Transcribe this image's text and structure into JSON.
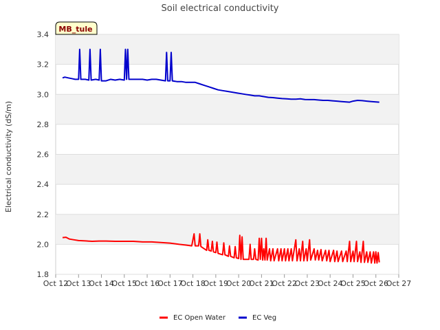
{
  "chart_data": {
    "type": "line",
    "title": "Soil electrical conductivity",
    "ylabel": "Electrical conductivity (dS/m)",
    "xlabel": "",
    "station_label": "MB_tule",
    "x_ticks": [
      12,
      13,
      14,
      15,
      16,
      17,
      18,
      19,
      20,
      21,
      22,
      23,
      24,
      25,
      26,
      27
    ],
    "x_tick_labels": [
      "Oct 12",
      "Oct 13",
      "Oct 14",
      "Oct 15",
      "Oct 16",
      "Oct 17",
      "Oct 18",
      "Oct 19",
      "Oct 20",
      "Oct 21",
      "Oct 22",
      "Oct 23",
      "Oct 24",
      "Oct 25",
      "Oct 26",
      "Oct 27"
    ],
    "xlim": [
      12,
      27
    ],
    "y_ticks": [
      1.8,
      2.0,
      2.2,
      2.4,
      2.6,
      2.8,
      3.0,
      3.2,
      3.4
    ],
    "y_tick_labels": [
      "1.8",
      "2.0",
      "2.2",
      "2.4",
      "2.6",
      "2.8",
      "3.0",
      "3.2",
      "3.4"
    ],
    "ylim": [
      1.8,
      3.4
    ],
    "grid": true,
    "background_bands": true,
    "legend_position": "bottom-center",
    "series": [
      {
        "name": "EC Open Water",
        "color": "#ff0000",
        "points": [
          [
            12.3,
            2.045
          ],
          [
            12.45,
            2.047
          ],
          [
            12.6,
            2.035
          ],
          [
            12.8,
            2.03
          ],
          [
            13.0,
            2.025
          ],
          [
            13.3,
            2.023
          ],
          [
            13.6,
            2.02
          ],
          [
            13.9,
            2.022
          ],
          [
            14.2,
            2.022
          ],
          [
            14.6,
            2.02
          ],
          [
            15.0,
            2.02
          ],
          [
            15.4,
            2.02
          ],
          [
            15.8,
            2.016
          ],
          [
            16.2,
            2.016
          ],
          [
            16.6,
            2.012
          ],
          [
            17.0,
            2.008
          ],
          [
            17.4,
            2.0
          ],
          [
            17.7,
            1.995
          ],
          [
            17.95,
            1.99
          ],
          [
            18.05,
            2.07
          ],
          [
            18.1,
            1.99
          ],
          [
            18.25,
            1.99
          ],
          [
            18.3,
            2.07
          ],
          [
            18.35,
            1.985
          ],
          [
            18.5,
            1.97
          ],
          [
            18.6,
            1.96
          ],
          [
            18.65,
            2.03
          ],
          [
            18.7,
            1.96
          ],
          [
            18.8,
            1.955
          ],
          [
            18.85,
            2.02
          ],
          [
            18.9,
            1.95
          ],
          [
            19.0,
            1.945
          ],
          [
            19.05,
            2.015
          ],
          [
            19.1,
            1.94
          ],
          [
            19.2,
            1.935
          ],
          [
            19.3,
            1.93
          ],
          [
            19.35,
            2.01
          ],
          [
            19.4,
            1.93
          ],
          [
            19.55,
            1.92
          ],
          [
            19.6,
            1.99
          ],
          [
            19.65,
            1.92
          ],
          [
            19.8,
            1.91
          ],
          [
            19.85,
            1.985
          ],
          [
            19.9,
            1.91
          ],
          [
            20.0,
            1.905
          ],
          [
            20.05,
            2.06
          ],
          [
            20.1,
            1.9
          ],
          [
            20.15,
            2.05
          ],
          [
            20.2,
            1.9
          ],
          [
            20.35,
            1.9
          ],
          [
            20.45,
            1.9
          ],
          [
            20.5,
            2.0
          ],
          [
            20.55,
            1.9
          ],
          [
            20.65,
            1.9
          ],
          [
            20.7,
            1.97
          ],
          [
            20.75,
            1.9
          ],
          [
            20.85,
            1.895
          ],
          [
            20.9,
            2.04
          ],
          [
            20.95,
            1.9
          ],
          [
            21.0,
            2.04
          ],
          [
            21.05,
            1.895
          ],
          [
            21.1,
            1.97
          ],
          [
            21.15,
            1.895
          ],
          [
            21.2,
            2.04
          ],
          [
            21.25,
            1.895
          ],
          [
            21.35,
            1.97
          ],
          [
            21.4,
            1.89
          ],
          [
            21.5,
            1.97
          ],
          [
            21.55,
            1.89
          ],
          [
            21.7,
            1.97
          ],
          [
            21.75,
            1.89
          ],
          [
            21.85,
            1.97
          ],
          [
            21.9,
            1.89
          ],
          [
            22.0,
            1.97
          ],
          [
            22.05,
            1.89
          ],
          [
            22.15,
            1.97
          ],
          [
            22.2,
            1.89
          ],
          [
            22.3,
            1.97
          ],
          [
            22.35,
            1.89
          ],
          [
            22.5,
            2.03
          ],
          [
            22.55,
            1.89
          ],
          [
            22.65,
            1.97
          ],
          [
            22.7,
            1.89
          ],
          [
            22.8,
            2.02
          ],
          [
            22.85,
            1.89
          ],
          [
            22.95,
            1.97
          ],
          [
            23.0,
            1.89
          ],
          [
            23.1,
            2.03
          ],
          [
            23.15,
            1.895
          ],
          [
            23.3,
            1.97
          ],
          [
            23.35,
            1.895
          ],
          [
            23.45,
            1.96
          ],
          [
            23.5,
            1.895
          ],
          [
            23.6,
            1.965
          ],
          [
            23.65,
            1.89
          ],
          [
            23.8,
            1.96
          ],
          [
            23.85,
            1.89
          ],
          [
            23.95,
            1.96
          ],
          [
            24.0,
            1.885
          ],
          [
            24.15,
            1.96
          ],
          [
            24.2,
            1.885
          ],
          [
            24.3,
            1.955
          ],
          [
            24.35,
            1.885
          ],
          [
            24.5,
            1.955
          ],
          [
            24.55,
            1.885
          ],
          [
            24.7,
            1.955
          ],
          [
            24.75,
            1.885
          ],
          [
            24.85,
            2.02
          ],
          [
            24.9,
            1.885
          ],
          [
            25.0,
            1.955
          ],
          [
            25.05,
            1.885
          ],
          [
            25.15,
            2.02
          ],
          [
            25.2,
            1.885
          ],
          [
            25.3,
            1.95
          ],
          [
            25.35,
            1.88
          ],
          [
            25.45,
            2.02
          ],
          [
            25.5,
            1.88
          ],
          [
            25.6,
            1.95
          ],
          [
            25.65,
            1.88
          ],
          [
            25.75,
            1.95
          ],
          [
            25.8,
            1.875
          ],
          [
            25.9,
            1.95
          ],
          [
            25.95,
            1.875
          ],
          [
            26.0,
            1.95
          ],
          [
            26.05,
            1.875
          ],
          [
            26.1,
            1.945
          ],
          [
            26.15,
            1.88
          ]
        ]
      },
      {
        "name": "EC Veg",
        "color": "#0000cc",
        "points": [
          [
            12.3,
            3.11
          ],
          [
            12.4,
            3.115
          ],
          [
            12.55,
            3.11
          ],
          [
            12.7,
            3.105
          ],
          [
            12.85,
            3.1
          ],
          [
            13.0,
            3.1
          ],
          [
            13.05,
            3.3
          ],
          [
            13.1,
            3.1
          ],
          [
            13.3,
            3.1
          ],
          [
            13.45,
            3.095
          ],
          [
            13.5,
            3.3
          ],
          [
            13.55,
            3.095
          ],
          [
            13.75,
            3.1
          ],
          [
            13.9,
            3.095
          ],
          [
            13.95,
            3.3
          ],
          [
            14.0,
            3.09
          ],
          [
            14.2,
            3.09
          ],
          [
            14.4,
            3.1
          ],
          [
            14.6,
            3.095
          ],
          [
            14.8,
            3.1
          ],
          [
            15.0,
            3.095
          ],
          [
            15.05,
            3.3
          ],
          [
            15.1,
            3.1
          ],
          [
            15.15,
            3.3
          ],
          [
            15.2,
            3.1
          ],
          [
            15.4,
            3.1
          ],
          [
            15.6,
            3.1
          ],
          [
            15.8,
            3.1
          ],
          [
            16.0,
            3.095
          ],
          [
            16.2,
            3.1
          ],
          [
            16.4,
            3.1
          ],
          [
            16.6,
            3.095
          ],
          [
            16.8,
            3.09
          ],
          [
            16.85,
            3.28
          ],
          [
            16.9,
            3.09
          ],
          [
            17.0,
            3.09
          ],
          [
            17.05,
            3.28
          ],
          [
            17.1,
            3.09
          ],
          [
            17.3,
            3.085
          ],
          [
            17.5,
            3.085
          ],
          [
            17.7,
            3.08
          ],
          [
            17.9,
            3.08
          ],
          [
            18.1,
            3.08
          ],
          [
            18.3,
            3.07
          ],
          [
            18.5,
            3.06
          ],
          [
            18.7,
            3.05
          ],
          [
            18.9,
            3.04
          ],
          [
            19.1,
            3.03
          ],
          [
            19.3,
            3.025
          ],
          [
            19.5,
            3.02
          ],
          [
            19.7,
            3.015
          ],
          [
            19.9,
            3.01
          ],
          [
            20.1,
            3.005
          ],
          [
            20.3,
            3.0
          ],
          [
            20.5,
            2.995
          ],
          [
            20.7,
            2.99
          ],
          [
            20.9,
            2.99
          ],
          [
            21.1,
            2.985
          ],
          [
            21.3,
            2.98
          ],
          [
            21.5,
            2.978
          ],
          [
            21.7,
            2.975
          ],
          [
            21.9,
            2.972
          ],
          [
            22.1,
            2.97
          ],
          [
            22.3,
            2.968
          ],
          [
            22.5,
            2.968
          ],
          [
            22.7,
            2.97
          ],
          [
            22.9,
            2.966
          ],
          [
            23.1,
            2.965
          ],
          [
            23.3,
            2.965
          ],
          [
            23.5,
            2.962
          ],
          [
            23.7,
            2.96
          ],
          [
            23.9,
            2.96
          ],
          [
            24.1,
            2.957
          ],
          [
            24.3,
            2.955
          ],
          [
            24.5,
            2.952
          ],
          [
            24.7,
            2.95
          ],
          [
            24.85,
            2.948
          ],
          [
            25.0,
            2.955
          ],
          [
            25.2,
            2.96
          ],
          [
            25.4,
            2.958
          ],
          [
            25.6,
            2.955
          ],
          [
            25.8,
            2.952
          ],
          [
            26.0,
            2.95
          ],
          [
            26.15,
            2.948
          ]
        ]
      }
    ]
  }
}
